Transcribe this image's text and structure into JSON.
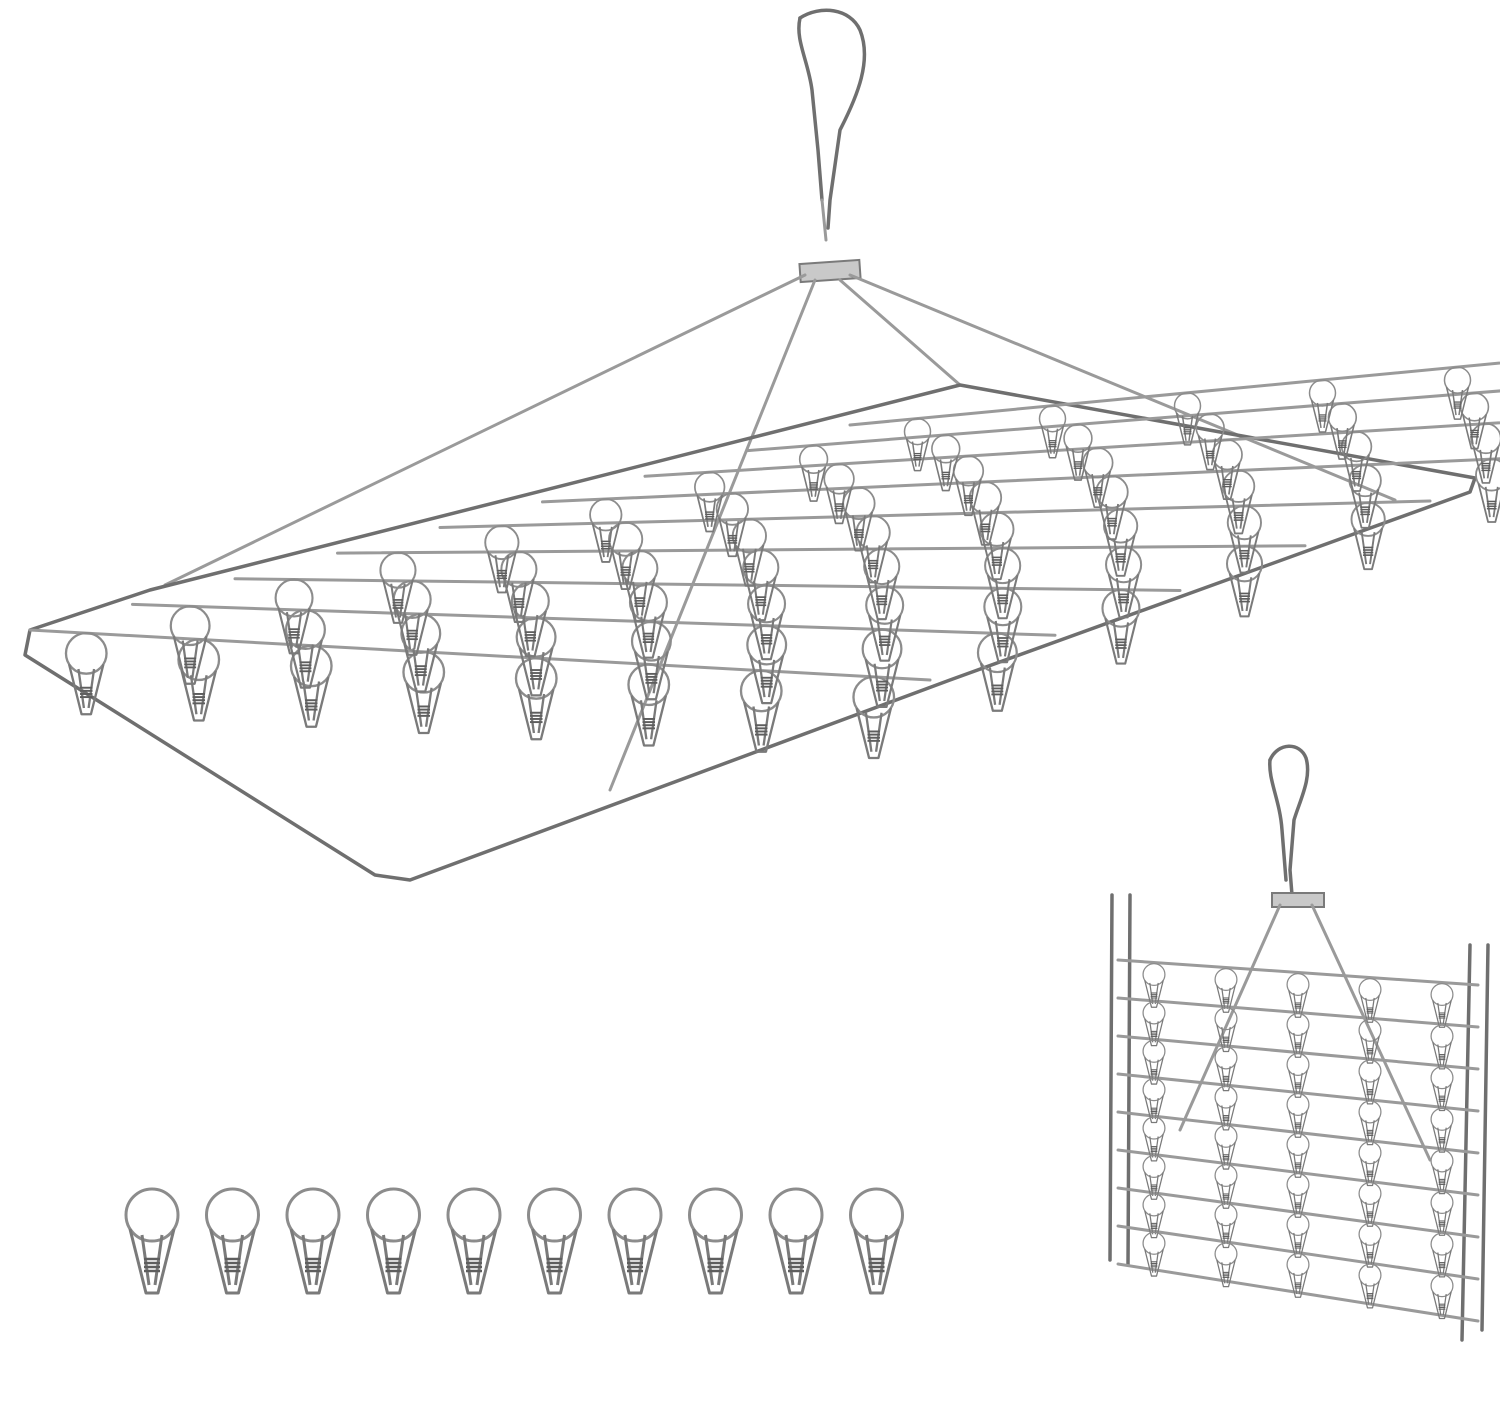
{
  "image": {
    "background": "#ffffff",
    "metal_color": "#9a9a9a",
    "main_rack": {
      "rows": 9,
      "clips_visible": 70
    },
    "folded_rack": {
      "rows": 9
    },
    "loose_clips": {
      "count": 10
    }
  }
}
